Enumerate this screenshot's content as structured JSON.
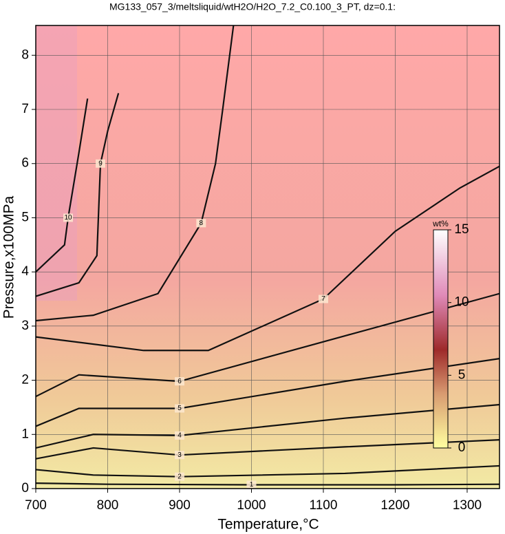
{
  "chart_data": {
    "type": "contour",
    "title": "MG133_057_3/meltsliquid/wtH2O/H2O_7.2_C0.100_3_PT, dz=0.1:",
    "x_label": "Temperature,°C",
    "y_label": "Pressure,x100MPa",
    "xlim": [
      700,
      1345
    ],
    "ylim": [
      0,
      8.55
    ],
    "xticks": [
      700,
      800,
      900,
      1000,
      1100,
      1200,
      1300
    ],
    "yticks": [
      0,
      1,
      2,
      3,
      4,
      5,
      6,
      7,
      8
    ],
    "grid": true,
    "series": [
      {
        "name": "1",
        "color": "#111111",
        "x": [
          700,
          800,
          1000,
          1200,
          1345
        ],
        "values": [
          0.1,
          0.08,
          0.07,
          0.07,
          0.08
        ]
      },
      {
        "name": "2",
        "color": "#111111",
        "x": [
          700,
          780,
          900,
          1130,
          1345
        ],
        "values": [
          0.35,
          0.25,
          0.22,
          0.28,
          0.42
        ]
      },
      {
        "name": "3",
        "color": "#111111",
        "x": [
          700,
          780,
          900,
          1130,
          1345
        ],
        "values": [
          0.55,
          0.75,
          0.62,
          0.77,
          0.9
        ]
      },
      {
        "name": "4",
        "color": "#111111",
        "x": [
          700,
          780,
          900,
          1130,
          1345
        ],
        "values": [
          0.75,
          1.0,
          0.98,
          1.3,
          1.55
        ]
      },
      {
        "name": "5",
        "color": "#111111",
        "x": [
          700,
          760,
          900,
          1130,
          1345
        ],
        "values": [
          1.15,
          1.48,
          1.48,
          1.98,
          2.4
        ]
      },
      {
        "name": "6",
        "color": "#111111",
        "x": [
          700,
          760,
          900,
          1130,
          1345
        ],
        "values": [
          1.7,
          2.1,
          1.98,
          2.82,
          3.6
        ]
      },
      {
        "name": "7",
        "color": "#111111",
        "x": [
          700,
          850,
          940,
          1100,
          1200,
          1290,
          1345
        ],
        "values": [
          2.8,
          2.55,
          2.55,
          3.5,
          4.75,
          5.55,
          5.95
        ]
      },
      {
        "name": "8",
        "color": "#111111",
        "x": [
          700,
          780,
          870,
          930,
          950,
          960,
          975
        ],
        "values": [
          3.1,
          3.2,
          3.6,
          4.9,
          6.0,
          7.0,
          8.55
        ]
      },
      {
        "name": "9",
        "color": "#111111",
        "x": [
          700,
          760,
          785,
          790,
          800,
          815
        ],
        "values": [
          3.55,
          3.8,
          4.3,
          6.0,
          6.6,
          7.3
        ]
      },
      {
        "name": "10",
        "color": "#111111",
        "x": [
          700,
          740,
          745,
          760,
          772
        ],
        "values": [
          4.0,
          4.5,
          5.0,
          6.2,
          7.2
        ]
      }
    ],
    "colorbar": {
      "label": "wt%",
      "lim": [
        0,
        15
      ],
      "ticks": [
        0,
        5,
        10,
        15
      ]
    }
  }
}
